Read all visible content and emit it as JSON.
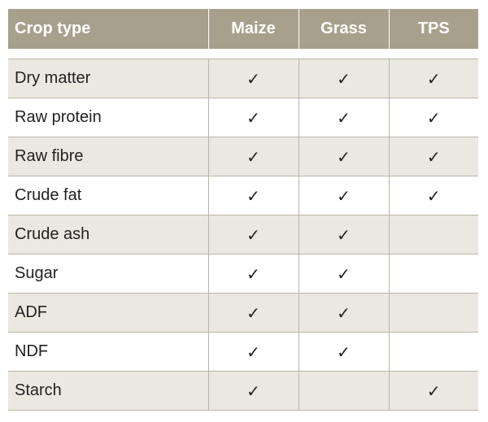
{
  "table": {
    "headers": [
      "Crop type",
      "Maize",
      "Grass",
      "TPS"
    ],
    "check_symbol": "✓",
    "rows": [
      {
        "label": "Dry matter",
        "marks": [
          "✓",
          "✓",
          "✓"
        ]
      },
      {
        "label": "Raw protein",
        "marks": [
          "✓",
          "✓",
          "✓"
        ]
      },
      {
        "label": "Raw fibre",
        "marks": [
          "✓",
          "✓",
          "✓"
        ]
      },
      {
        "label": "Crude fat",
        "marks": [
          "✓",
          "✓",
          "✓"
        ]
      },
      {
        "label": "Crude ash",
        "marks": [
          "✓",
          "✓",
          ""
        ]
      },
      {
        "label": "Sugar",
        "marks": [
          "✓",
          "✓",
          ""
        ]
      },
      {
        "label": "ADF",
        "marks": [
          "✓",
          "✓",
          ""
        ]
      },
      {
        "label": "NDF",
        "marks": [
          "✓",
          "✓",
          ""
        ]
      },
      {
        "label": "Starch",
        "marks": [
          "✓",
          "",
          "✓"
        ]
      }
    ]
  },
  "colors": {
    "header_bg": "#a7a08c",
    "header_text": "#ffffff",
    "row_shade": "#ebe8e1",
    "row_plain": "#ffffff",
    "border": "#b9b4a4"
  }
}
